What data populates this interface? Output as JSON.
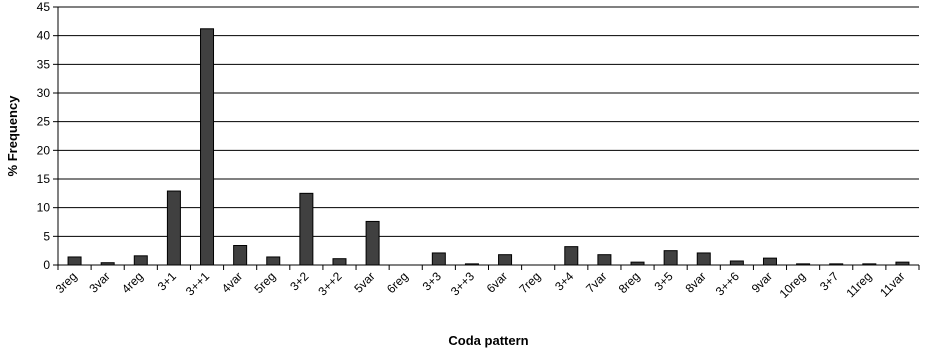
{
  "chart_data": {
    "type": "bar",
    "xlabel": "Coda pattern",
    "ylabel": "% Frequency",
    "ylim": [
      0,
      45
    ],
    "yticks": [
      0,
      5,
      10,
      15,
      20,
      25,
      30,
      35,
      40,
      45
    ],
    "grid": true,
    "legend": "none",
    "bar_color": "#404040",
    "categories": [
      "3reg",
      "3var",
      "4reg",
      "3+1",
      "3++1",
      "4var",
      "5reg",
      "3+2",
      "3++2",
      "5var",
      "6reg",
      "3+3",
      "3++3",
      "6var",
      "7reg",
      "3+4",
      "7var",
      "8reg",
      "3+5",
      "8var",
      "3++6",
      "9var",
      "10reg",
      "3+7",
      "11reg",
      "11var"
    ],
    "values": [
      1.4,
      0.4,
      1.6,
      12.9,
      41.2,
      3.4,
      1.4,
      12.5,
      1.1,
      7.6,
      0,
      2.1,
      0.2,
      1.8,
      0,
      3.2,
      1.8,
      0.5,
      2.5,
      2.1,
      0.7,
      1.2,
      0.2,
      0.2,
      0.2,
      0.5
    ]
  }
}
